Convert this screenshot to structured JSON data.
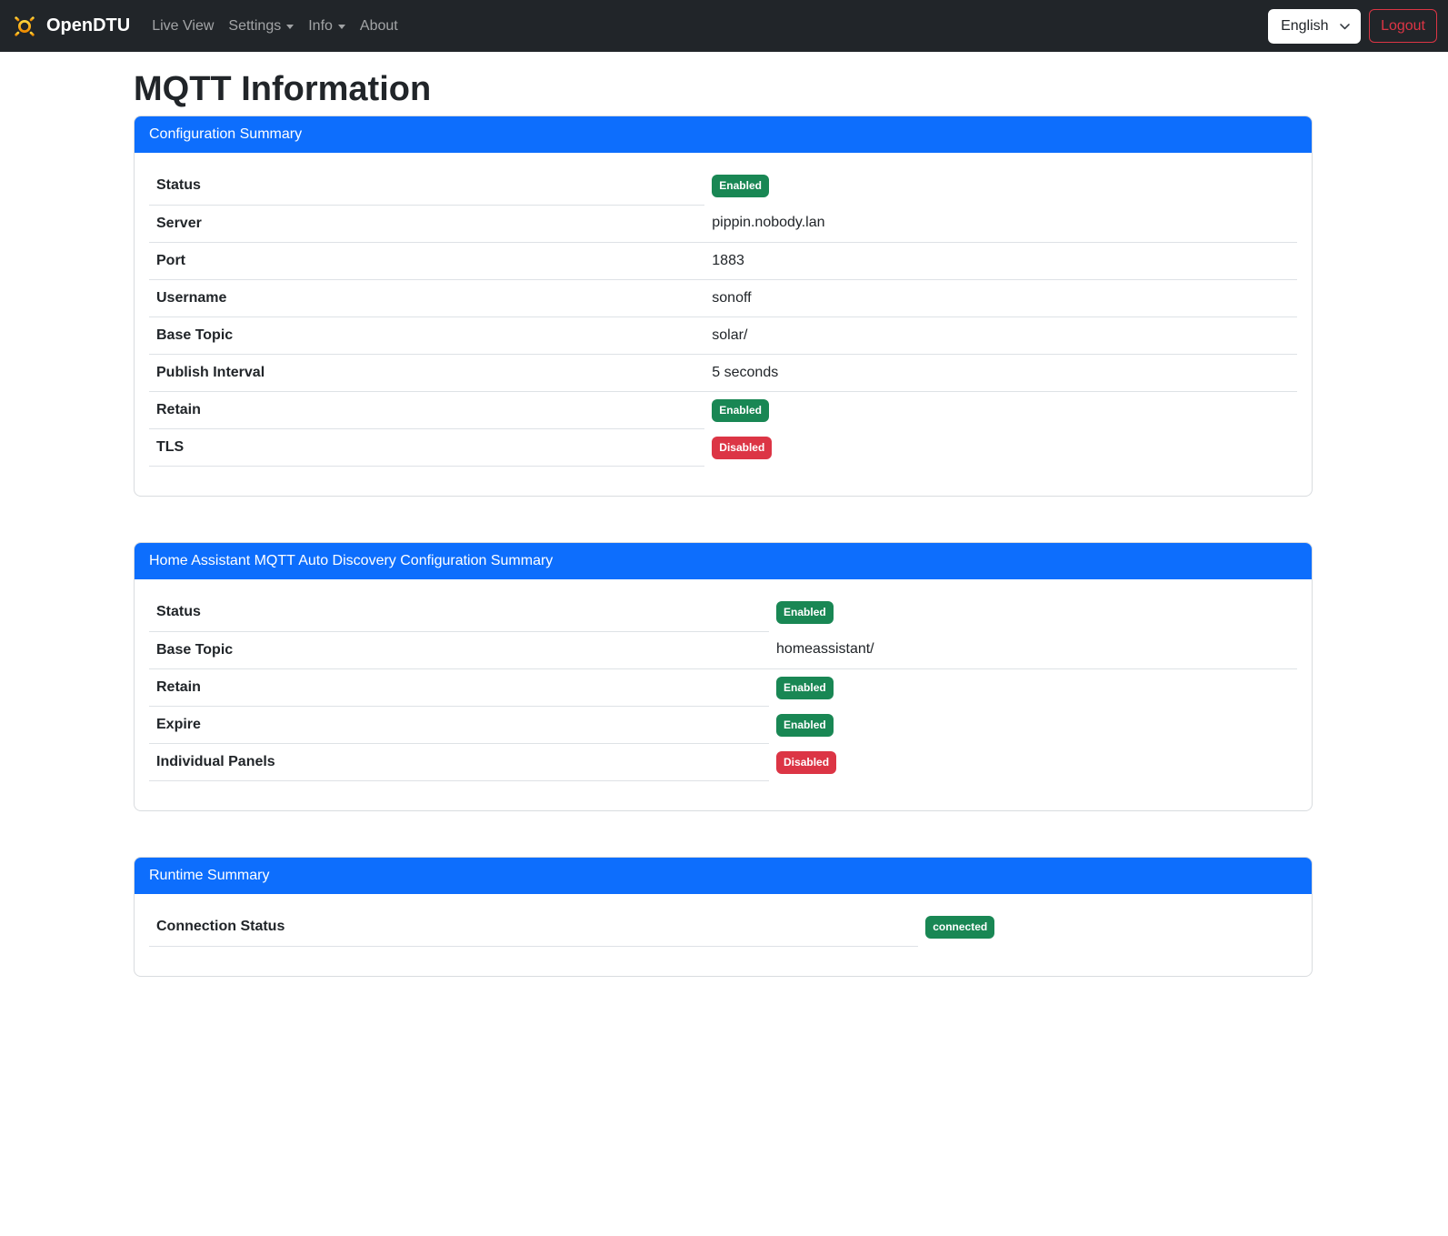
{
  "navbar": {
    "brand": {
      "label": "OpenDTU",
      "icon": "sun-icon"
    },
    "items": [
      {
        "label": "Live View",
        "caret": false
      },
      {
        "label": "Settings",
        "caret": true
      },
      {
        "label": "Info",
        "caret": true
      },
      {
        "label": "About",
        "caret": false
      }
    ],
    "language": {
      "selected": "English",
      "icon": "chevron-down-icon"
    },
    "logout_label": "Logout"
  },
  "page": {
    "title": "MQTT Information"
  },
  "cards": [
    {
      "title": "Configuration Summary",
      "rows": [
        {
          "label": "Status",
          "type": "badge",
          "value": "Enabled",
          "variant": "success"
        },
        {
          "label": "Server",
          "type": "text",
          "value": "pippin.nobody.lan"
        },
        {
          "label": "Port",
          "type": "text",
          "value": "1883"
        },
        {
          "label": "Username",
          "type": "text",
          "value": "sonoff"
        },
        {
          "label": "Base Topic",
          "type": "text",
          "value": "solar/"
        },
        {
          "label": "Publish Interval",
          "type": "text",
          "value": "5 seconds"
        },
        {
          "label": "Retain",
          "type": "badge",
          "value": "Enabled",
          "variant": "success"
        },
        {
          "label": "TLS",
          "type": "badge",
          "value": "Disabled",
          "variant": "danger"
        }
      ]
    },
    {
      "title": "Home Assistant MQTT Auto Discovery Configuration Summary",
      "rows": [
        {
          "label": "Status",
          "type": "badge",
          "value": "Enabled",
          "variant": "success"
        },
        {
          "label": "Base Topic",
          "type": "text",
          "value": "homeassistant/"
        },
        {
          "label": "Retain",
          "type": "badge",
          "value": "Enabled",
          "variant": "success"
        },
        {
          "label": "Expire",
          "type": "badge",
          "value": "Enabled",
          "variant": "success"
        },
        {
          "label": "Individual Panels",
          "type": "badge",
          "value": "Disabled",
          "variant": "danger"
        }
      ]
    },
    {
      "title": "Runtime Summary",
      "rows": [
        {
          "label": "Connection Status",
          "type": "badge",
          "value": "connected",
          "variant": "success"
        }
      ]
    }
  ],
  "colors": {
    "primary": "#0d6efd",
    "success": "#198754",
    "danger": "#dc3545",
    "navbar_bg": "#212529",
    "divider": "#dee2e6"
  }
}
